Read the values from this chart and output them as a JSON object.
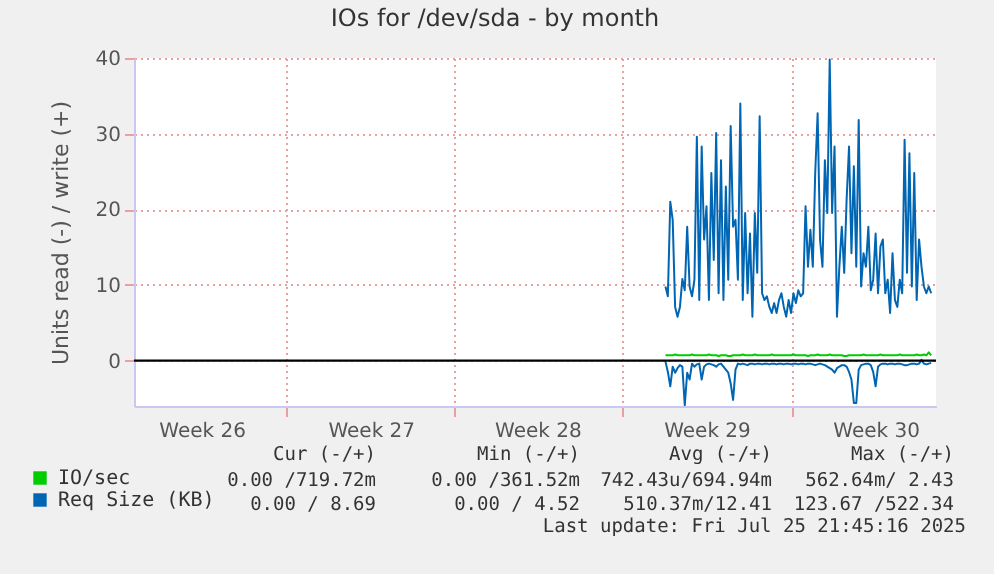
{
  "chart_data": {
    "type": "line",
    "title": "IOs for /dev/sda - by month",
    "ylabel": "Units read (-) / write (+)",
    "categories": [
      null,
      null,
      null,
      null,
      null,
      null,
      null,
      null,
      null,
      null,
      null,
      null,
      null,
      null,
      null,
      null,
      null,
      null,
      null,
      null,
      null,
      null,
      null,
      null,
      null,
      null,
      null,
      null,
      "Week 26",
      null,
      null,
      null,
      null,
      null,
      null,
      null,
      null,
      null,
      null,
      null,
      null,
      null,
      null,
      null,
      null,
      null,
      null,
      null,
      null,
      null,
      null,
      null,
      null,
      null,
      null,
      null,
      null,
      null,
      null,
      null,
      null,
      null,
      null,
      null,
      null,
      null,
      null,
      null,
      null,
      null,
      null,
      null,
      null,
      null,
      null,
      null,
      null,
      null,
      null,
      null,
      null,
      null,
      null,
      null,
      null,
      null,
      null,
      null,
      null,
      null,
      null,
      null,
      null,
      null,
      null,
      null,
      null,
      null,
      "Week 27",
      null,
      null,
      null,
      null,
      null,
      null,
      null,
      null,
      null,
      null,
      null,
      null,
      null,
      null,
      null,
      null,
      null,
      null,
      null,
      null,
      null,
      null,
      null,
      null,
      null,
      null,
      null,
      null,
      null,
      null,
      null,
      null,
      null,
      null,
      null,
      null,
      null,
      null,
      null,
      null,
      null,
      null,
      null,
      null,
      null,
      null,
      null,
      null,
      null,
      null,
      null,
      null,
      null,
      null,
      null,
      null,
      null,
      null,
      null,
      null,
      null,
      null,
      null,
      null,
      null,
      null,
      null,
      null,
      "Week 28",
      null,
      null,
      null,
      null,
      null,
      null,
      null,
      null,
      null,
      null,
      null,
      null,
      null,
      null,
      null,
      null,
      null,
      null,
      null,
      null,
      null,
      null,
      null,
      null,
      null,
      null,
      null,
      null,
      null,
      null,
      null,
      null,
      null,
      null,
      null,
      null,
      null,
      null,
      null,
      null,
      null,
      null,
      null,
      null,
      null,
      null,
      null,
      null,
      null,
      null,
      null,
      null,
      null,
      null,
      null,
      null,
      null,
      null,
      null,
      null,
      null,
      null,
      null,
      null,
      null,
      null,
      null,
      null,
      null,
      "Week 29",
      null,
      null,
      null,
      null,
      null,
      null,
      null,
      null,
      null,
      null,
      null,
      null,
      null,
      null,
      null,
      null,
      null,
      null,
      null,
      null,
      null,
      null,
      null,
      null,
      null,
      null,
      null,
      null,
      null,
      null,
      null,
      null,
      null,
      null,
      null,
      null,
      null,
      null,
      null,
      null,
      null,
      null,
      null,
      null,
      null,
      null,
      null,
      null,
      null,
      null,
      null,
      null,
      null,
      null,
      null,
      null,
      null,
      null,
      null,
      null,
      null,
      null,
      null,
      null,
      null,
      null,
      null,
      null,
      null,
      "Week 30",
      null,
      null,
      null,
      null,
      null,
      null,
      null,
      null,
      null,
      null,
      null,
      null,
      null,
      null,
      null,
      null,
      null,
      null,
      null,
      null,
      null,
      null,
      null,
      null,
      null
    ],
    "ylim": [
      -6,
      40
    ],
    "yticks": [
      0,
      10,
      20,
      30,
      40
    ],
    "grid": true,
    "legend": "bottom",
    "ref_lines": [
      {
        "axis": "y",
        "value": 0,
        "color": "#000000"
      }
    ],
    "series": [
      {
        "name": "IO/sec",
        "color": "#00cc00",
        "values": [
          null,
          null,
          null,
          null,
          null,
          null,
          null,
          null,
          null,
          null,
          null,
          null,
          null,
          null,
          null,
          null,
          null,
          null,
          null,
          null,
          null,
          null,
          null,
          null,
          null,
          null,
          null,
          null,
          null,
          null,
          null,
          null,
          null,
          null,
          null,
          null,
          null,
          null,
          null,
          null,
          null,
          null,
          null,
          null,
          null,
          null,
          null,
          null,
          null,
          null,
          null,
          null,
          null,
          null,
          null,
          null,
          null,
          null,
          null,
          null,
          null,
          null,
          null,
          null,
          null,
          null,
          null,
          null,
          null,
          null,
          null,
          null,
          null,
          null,
          null,
          null,
          null,
          null,
          null,
          null,
          null,
          null,
          null,
          null,
          null,
          null,
          null,
          null,
          null,
          null,
          null,
          null,
          null,
          null,
          null,
          null,
          null,
          null,
          null,
          null,
          null,
          null,
          null,
          null,
          null,
          null,
          null,
          null,
          null,
          null,
          null,
          null,
          null,
          null,
          null,
          null,
          null,
          null,
          null,
          null,
          null,
          null,
          null,
          null,
          null,
          null,
          null,
          null,
          null,
          null,
          null,
          null,
          null,
          null,
          null,
          null,
          null,
          null,
          null,
          null,
          null,
          null,
          null,
          null,
          null,
          null,
          null,
          null,
          null,
          null,
          null,
          null,
          null,
          null,
          null,
          null,
          null,
          null,
          null,
          null,
          null,
          null,
          null,
          null,
          null,
          null,
          null,
          null,
          null,
          null,
          null,
          null,
          null,
          null,
          null,
          null,
          null,
          null,
          null,
          null,
          null,
          null,
          null,
          null,
          null,
          null,
          null,
          null,
          null,
          null,
          null,
          null,
          null,
          null,
          null,
          null,
          null,
          null,
          null,
          null,
          null,
          null,
          null,
          null,
          null,
          null,
          null,
          null,
          null,
          null,
          null,
          null,
          null,
          null,
          null,
          null,
          null,
          null,
          null,
          null,
          0.7,
          0.7,
          0.7,
          0.7,
          0.8,
          0.7,
          0.7,
          0.7,
          0.7,
          0.7,
          0.7,
          0.8,
          0.7,
          0.7,
          0.7,
          0.7,
          0.7,
          0.7,
          0.8,
          0.7,
          0.7,
          0.7,
          0.6,
          0.7,
          0.7,
          0.7,
          0.6,
          0.6,
          0.7,
          0.7,
          0.7,
          0.7,
          0.8,
          0.7,
          0.7,
          0.7,
          0.7,
          0.8,
          0.7,
          0.7,
          0.7,
          0.7,
          0.7,
          0.7,
          0.8,
          0.7,
          0.7,
          0.7,
          0.7,
          0.7,
          0.7,
          0.7,
          0.7,
          0.8,
          0.7,
          0.7,
          0.7,
          0.7,
          0.7,
          0.6,
          0.7,
          0.7,
          0.7,
          0.8,
          0.7,
          0.7,
          0.7,
          0.7,
          0.8,
          0.7,
          0.7,
          0.7,
          0.7,
          0.7,
          0.6,
          0.6,
          0.7,
          0.7,
          0.7,
          0.7,
          0.7,
          0.7,
          0.8,
          0.7,
          0.7,
          0.7,
          0.7,
          0.7,
          0.7,
          0.8,
          0.7,
          0.7,
          0.7,
          0.7,
          0.7,
          0.7,
          0.7,
          0.8,
          0.7,
          0.7,
          0.7,
          0.7,
          0.7,
          0.7,
          0.8,
          0.7,
          0.7,
          0.8,
          0.7,
          1.1,
          0.7,
          null,
          null
        ]
      },
      {
        "name": "Req Size (KB)",
        "color": "#0066b3",
        "values": [
          null,
          null,
          null,
          null,
          null,
          null,
          null,
          null,
          null,
          null,
          null,
          null,
          null,
          null,
          null,
          null,
          null,
          null,
          null,
          null,
          null,
          null,
          null,
          null,
          null,
          null,
          null,
          null,
          null,
          null,
          null,
          null,
          null,
          null,
          null,
          null,
          null,
          null,
          null,
          null,
          null,
          null,
          null,
          null,
          null,
          null,
          null,
          null,
          null,
          null,
          null,
          null,
          null,
          null,
          null,
          null,
          null,
          null,
          null,
          null,
          null,
          null,
          null,
          null,
          null,
          null,
          null,
          null,
          null,
          null,
          null,
          null,
          null,
          null,
          null,
          null,
          null,
          null,
          null,
          null,
          null,
          null,
          null,
          null,
          null,
          null,
          null,
          null,
          null,
          null,
          null,
          null,
          null,
          null,
          null,
          null,
          null,
          null,
          null,
          null,
          null,
          null,
          null,
          null,
          null,
          null,
          null,
          null,
          null,
          null,
          null,
          null,
          null,
          null,
          null,
          null,
          null,
          null,
          null,
          null,
          null,
          null,
          null,
          null,
          null,
          null,
          null,
          null,
          null,
          null,
          null,
          null,
          null,
          null,
          null,
          null,
          null,
          null,
          null,
          null,
          null,
          null,
          null,
          null,
          null,
          null,
          null,
          null,
          null,
          null,
          null,
          null,
          null,
          null,
          null,
          null,
          null,
          null,
          null,
          null,
          null,
          null,
          null,
          null,
          null,
          null,
          null,
          null,
          null,
          null,
          null,
          null,
          null,
          null,
          null,
          null,
          null,
          null,
          null,
          null,
          null,
          null,
          null,
          null,
          null,
          null,
          null,
          null,
          null,
          null,
          null,
          null,
          null,
          null,
          null,
          null,
          null,
          null,
          null,
          null,
          null,
          null,
          null,
          null,
          null,
          null,
          null,
          null,
          null,
          null,
          null,
          null,
          null,
          null,
          null,
          null,
          null,
          null,
          null,
          null,
          9.8,
          8.5,
          21.0,
          18.6,
          7.1,
          5.8,
          7.1,
          10.8,
          9.3,
          17.7,
          9.8,
          8.5,
          10.7,
          29.6,
          8.0,
          28.3,
          16.0,
          20.4,
          8.0,
          24.8,
          13.3,
          30.1,
          8.9,
          26.5,
          8.0,
          23.0,
          10.7,
          31.0,
          17.7,
          18.6,
          10.7,
          34.0,
          8.0,
          19.5,
          8.9,
          16.8,
          5.8,
          19.5,
          11.6,
          32.3,
          8.9,
          8.0,
          8.5,
          7.1,
          6.3,
          7.6,
          6.3,
          8.0,
          8.9,
          7.1,
          5.8,
          8.0,
          6.3,
          8.9,
          7.6,
          9.3,
          8.5,
          8.9,
          20.4,
          12.4,
          17.3,
          12.4,
          24.8,
          32.7,
          16.0,
          12.4,
          26.5,
          19.5,
          39.8,
          19.5,
          28.3,
          5.8,
          12.4,
          17.7,
          11.6,
          21.3,
          28.3,
          14.2,
          25.7,
          12.4,
          31.8,
          9.8,
          14.2,
          12.4,
          17.7,
          9.3,
          10.7,
          16.8,
          8.9,
          15.1,
          16.0,
          8.9,
          10.7,
          6.3,
          14.2,
          8.0,
          7.1,
          10.7,
          8.9,
          29.2,
          11.6,
          27.4,
          9.8,
          24.8,
          8.0,
          16.0,
          12.4,
          9.8,
          8.9,
          9.8,
          8.9,
          null,
          null
        ]
      },
      {
        "color": "#0066b3",
        "values": [
          null,
          null,
          null,
          null,
          null,
          null,
          null,
          null,
          null,
          null,
          null,
          null,
          null,
          null,
          null,
          null,
          null,
          null,
          null,
          null,
          null,
          null,
          null,
          null,
          null,
          null,
          null,
          null,
          null,
          null,
          null,
          null,
          null,
          null,
          null,
          null,
          null,
          null,
          null,
          null,
          null,
          null,
          null,
          null,
          null,
          null,
          null,
          null,
          null,
          null,
          null,
          null,
          null,
          null,
          null,
          null,
          null,
          null,
          null,
          null,
          null,
          null,
          null,
          null,
          null,
          null,
          null,
          null,
          null,
          null,
          null,
          null,
          null,
          null,
          null,
          null,
          null,
          null,
          null,
          null,
          null,
          null,
          null,
          null,
          null,
          null,
          null,
          null,
          null,
          null,
          null,
          null,
          null,
          null,
          null,
          null,
          null,
          null,
          null,
          null,
          null,
          null,
          null,
          null,
          null,
          null,
          null,
          null,
          null,
          null,
          null,
          null,
          null,
          null,
          null,
          null,
          null,
          null,
          null,
          null,
          null,
          null,
          null,
          null,
          null,
          null,
          null,
          null,
          null,
          null,
          null,
          null,
          null,
          null,
          null,
          null,
          null,
          null,
          null,
          null,
          null,
          null,
          null,
          null,
          null,
          null,
          null,
          null,
          null,
          null,
          null,
          null,
          null,
          null,
          null,
          null,
          null,
          null,
          null,
          null,
          null,
          null,
          null,
          null,
          null,
          null,
          null,
          null,
          null,
          null,
          null,
          null,
          null,
          null,
          null,
          null,
          null,
          null,
          null,
          null,
          null,
          null,
          null,
          null,
          null,
          null,
          null,
          null,
          null,
          null,
          null,
          null,
          null,
          null,
          null,
          null,
          null,
          null,
          null,
          null,
          null,
          null,
          null,
          null,
          null,
          null,
          null,
          null,
          null,
          null,
          null,
          null,
          null,
          null,
          null,
          null,
          null,
          null,
          null,
          null,
          -0.1,
          -1.5,
          -3.4,
          -0.8,
          -1.6,
          -1.0,
          -0.6,
          -0.8,
          -5.9,
          -1.6,
          -2.5,
          -0.4,
          -0.8,
          -0.5,
          -0.4,
          -2.5,
          -0.8,
          -0.5,
          -0.4,
          -0.5,
          -0.6,
          -0.8,
          -0.5,
          -0.4,
          -0.8,
          -1.2,
          -1.6,
          -3.0,
          -5.2,
          -1.2,
          -0.4,
          -0.5,
          -0.4,
          -0.5,
          -0.6,
          -0.4,
          -0.4,
          -0.5,
          -0.4,
          -0.4,
          -0.5,
          -0.4,
          -0.4,
          -0.5,
          -0.4,
          -0.4,
          -0.5,
          -0.4,
          -0.4,
          -0.5,
          -0.4,
          -0.4,
          -0.5,
          -0.4,
          -0.4,
          -0.5,
          -0.4,
          -0.4,
          -0.5,
          -0.4,
          -0.4,
          -0.5,
          -0.6,
          -0.5,
          -0.4,
          -0.5,
          -0.6,
          -0.8,
          -1.0,
          -1.2,
          -1.6,
          -1.0,
          -0.8,
          -0.6,
          -0.6,
          -0.8,
          -1.5,
          -2.5,
          -5.6,
          -5.6,
          -1.2,
          -0.6,
          -0.5,
          -0.4,
          -0.4,
          -0.6,
          -1.5,
          -3.4,
          -0.8,
          -0.5,
          -0.4,
          -0.4,
          -0.5,
          -0.4,
          -0.4,
          -0.5,
          -0.4,
          -0.4,
          -0.5,
          -0.6,
          -0.6,
          -0.5,
          -0.4,
          -0.4,
          -0.5,
          -0.4,
          0.1,
          -0.4,
          -0.5,
          -0.4,
          -0.3,
          null,
          null
        ]
      }
    ],
    "annotations": [
      "Cur (-/+)",
      "Min (-/+)",
      "Avg (-/+)",
      "Max (-/+)",
      "0.00 /719.72m",
      "0.00 /361.52m",
      "742.43u/694.94m",
      "562.64m/ 2.43",
      "0.00 / 8.69",
      "0.00 / 4.52",
      "510.37m/12.41",
      "123.67 /522.34",
      "Last update: Fri Jul 25 21:45:16 2025"
    ]
  }
}
